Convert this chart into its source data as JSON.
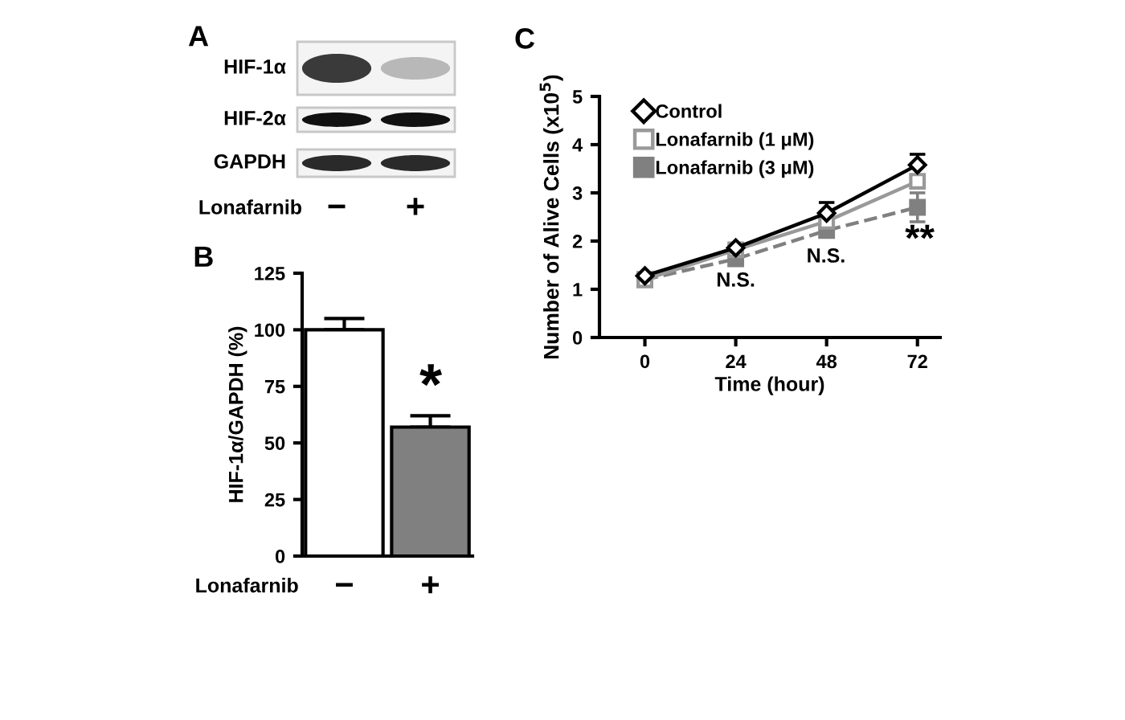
{
  "chart_data": [
    {
      "type": "other",
      "title": "A",
      "categories": [
        "−",
        "+"
      ],
      "y_categories": [
        "HIF-1α",
        "HIF-2α",
        "GAPDH"
      ],
      "xlabel": "Lonafarnib"
    },
    {
      "type": "bar",
      "title": "B",
      "categories": [
        "−",
        "+"
      ],
      "xlabel": "Lonafarnib",
      "ylabel": "HIF-1α/GAPDH (%)",
      "values": [
        100,
        57
      ],
      "errors": [
        [
          100,
          105
        ],
        [
          57,
          62
        ]
      ],
      "colors": [
        "#ffffff",
        "#808080"
      ],
      "ylim": [
        0,
        125
      ],
      "yticks": [
        0,
        25,
        50,
        75,
        100,
        125
      ],
      "annotations": [
        "*"
      ]
    },
    {
      "type": "line",
      "title": "C",
      "x": [
        0,
        24,
        48,
        72
      ],
      "xlabel": "Time (hour)",
      "ylabel": "Number of Alive Cells (x10$^{5}$)",
      "xlim": [
        -12,
        78
      ],
      "ylim": [
        0,
        5
      ],
      "xticks": [
        0,
        24,
        48,
        72
      ],
      "yticks": [
        0,
        1,
        2,
        3,
        4,
        5
      ],
      "legend": "top left",
      "series": [
        {
          "name": "Control",
          "color": "#000000",
          "marker": "diamond",
          "line_style": "solid",
          "values": [
            1.28,
            1.86,
            2.58,
            3.58
          ],
          "errors": [
            0.05,
            0.05,
            0.22,
            0.22
          ]
        },
        {
          "name": "Lonafarnib (1 μM)",
          "color": "#999999",
          "marker": "square",
          "line_style": "solid",
          "values": [
            1.2,
            1.82,
            2.41,
            3.24
          ],
          "errors": [
            0.04,
            0.04,
            0.06,
            0.1
          ]
        },
        {
          "name": "Lonafarnib (3 μM)",
          "color": "#808080",
          "marker": "square",
          "line_style": "dashed",
          "values": [
            1.2,
            1.63,
            2.22,
            2.7
          ],
          "errors": [
            0.04,
            0.05,
            0.06,
            0.3
          ]
        }
      ],
      "annotations": [
        "N.S.",
        "N.S.",
        "**"
      ]
    }
  ]
}
